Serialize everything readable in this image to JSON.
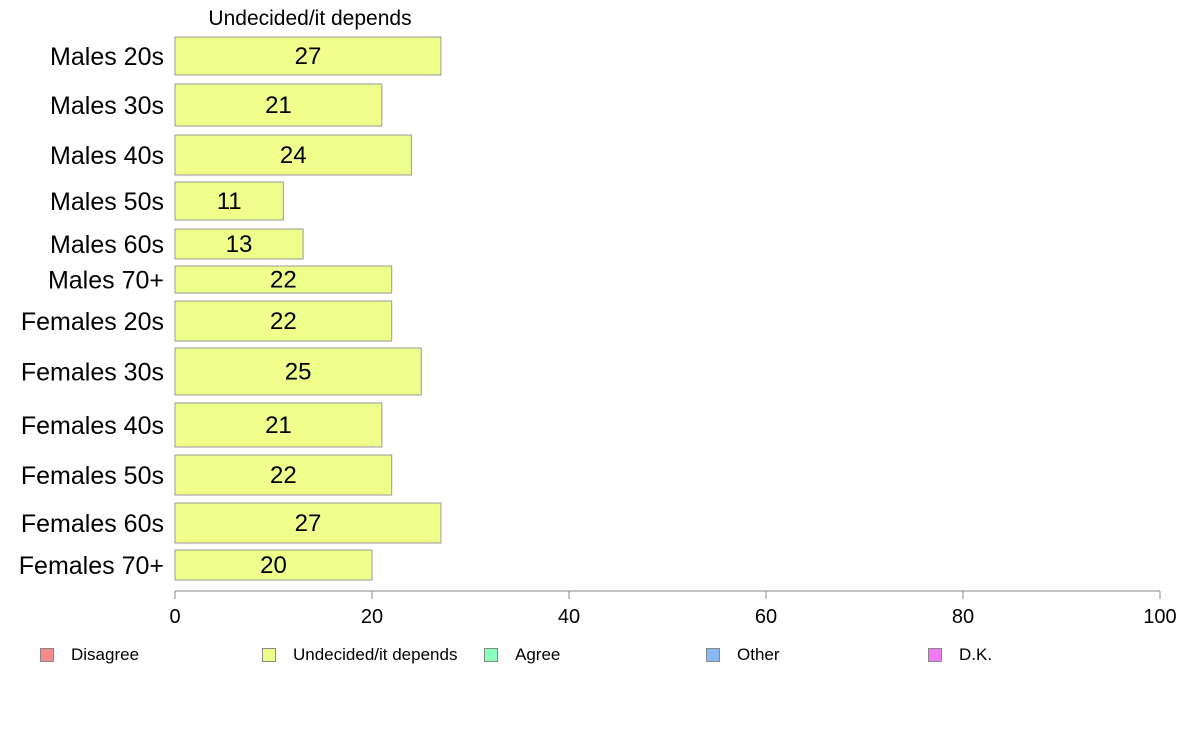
{
  "chart_data": {
    "type": "bar",
    "orientation": "horizontal",
    "title": "Undecided/it depends",
    "categories": [
      "Males 20s",
      "Males 30s",
      "Males 40s",
      "Males 50s",
      "Males 60s",
      "Males 70+",
      "Females 20s",
      "Females 30s",
      "Females 40s",
      "Females 50s",
      "Females 60s",
      "Females 70+"
    ],
    "series": [
      {
        "name": "Undecided/it depends",
        "values": [
          27,
          21,
          24,
          11,
          13,
          22,
          22,
          25,
          21,
          22,
          27,
          20
        ],
        "color": "#eeff8c"
      }
    ],
    "xlim": [
      0,
      100
    ],
    "xticks": [
      0,
      20,
      40,
      60,
      80,
      100
    ],
    "grid": false,
    "legend_position": "bottom",
    "legend": [
      {
        "label": "Disagree",
        "color": "#f48a8a"
      },
      {
        "label": "Undecided/it depends",
        "color": "#eeff8c"
      },
      {
        "label": "Agree",
        "color": "#8affbd"
      },
      {
        "label": "Other",
        "color": "#8ab8f4"
      },
      {
        "label": "D.K.",
        "color": "#ee7bf4"
      }
    ]
  }
}
